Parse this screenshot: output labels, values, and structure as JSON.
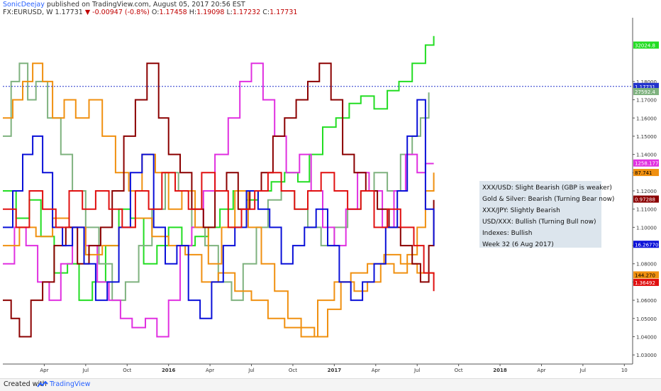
{
  "header": {
    "author": "SonicDeejay",
    "published": "published on TradingView.com, August 05, 2017 20:56 EST",
    "symbol": "FX:EURUSD, W",
    "last": "1.17731",
    "change_arrow": "▼",
    "change": "-0.00947 (-0.8%)",
    "ohlc": [
      {
        "label": "O:",
        "value": "1.17458"
      },
      {
        "label": "H:",
        "value": "1.19098"
      },
      {
        "label": "L:",
        "value": "1.17232"
      },
      {
        "label": "C:",
        "value": "1.17731"
      }
    ]
  },
  "legend": {
    "lines": [
      "XXX/USD: Slight Bearish (GBP is weaker)",
      "Gold & Silver: Bearish (Turning Bear now)",
      "XXX/JPY: Slightly Bearish",
      "USD/XXX: Bullish (Turning Bull now)",
      "Indexes: Bullish",
      "Week 32 (6 Aug 2017)"
    ]
  },
  "footer": {
    "created": "Created with",
    "brand": "TradingView",
    "icon": "tradingview-logo-icon"
  },
  "colors": {
    "green": "#22dd22",
    "olive": "#7fb27f",
    "magenta": "#e030e0",
    "orange": "#f09010",
    "darkred": "#8b0000",
    "blue": "#0a10d8",
    "red": "#e01010",
    "price_line": "#2233cc"
  },
  "chart_data": {
    "type": "line",
    "step": true,
    "grid": false,
    "ylim": [
      1.025,
      1.215
    ],
    "y_ticks": [
      "1.18000",
      "1.17000",
      "1.16000",
      "1.15000",
      "1.14000",
      "1.13000",
      "1.12000",
      "1.11000",
      "1.10000",
      "1.09000",
      "1.08000",
      "1.07000",
      "1.06000",
      "1.05000",
      "1.04000",
      "1.03000"
    ],
    "x_ticks": [
      "Apr",
      "Jul",
      "Oct",
      "2016",
      "Apr",
      "Jul",
      "Oct",
      "2017",
      "Apr",
      "Jul",
      "Oct",
      "2018",
      "Apr",
      "Jul",
      "10"
    ],
    "x_tick_values": [
      2015.25,
      2015.5,
      2015.75,
      2016.0,
      2016.25,
      2016.5,
      2016.75,
      2017.0,
      2017.25,
      2017.5,
      2017.75,
      2018.0,
      2018.25,
      2018.5,
      2018.75
    ],
    "price_line": {
      "value": 1.17731,
      "label": "1.17731"
    },
    "value_labels": [
      {
        "label": "32024.8",
        "y": 1.2,
        "color": "#22dd22",
        "text_color": "#ffffff"
      },
      {
        "label": "27592.4",
        "y": 1.1745,
        "color": "#7fb27f",
        "text_color": "#ffffff"
      },
      {
        "label": "1258.177",
        "y": 1.1353,
        "color": "#e030e0",
        "text_color": "#ffffff"
      },
      {
        "label": "87.741",
        "y": 1.1301,
        "color": "#f09010",
        "text_color": "#000000"
      },
      {
        "label": "0.97288",
        "y": 1.1155,
        "color": "#8b0000",
        "text_color": "#ffffff"
      },
      {
        "label": "16.26770",
        "y": 1.0907,
        "color": "#0a10d8",
        "text_color": "#ffffff"
      },
      {
        "label": "144.270",
        "y": 1.0739,
        "color": "#f09010",
        "text_color": "#000000"
      },
      {
        "label": "1.36492",
        "y": 1.0698,
        "color": "#e01010",
        "text_color": "#ffffff"
      }
    ],
    "series": [
      {
        "color": "#22dd22",
        "x": [
          2015.0,
          2015.08,
          2015.16,
          2015.23,
          2015.31,
          2015.39,
          2015.46,
          2015.54,
          2015.62,
          2015.7,
          2015.77,
          2015.85,
          2015.93,
          2016.0,
          2016.08,
          2016.16,
          2016.24,
          2016.31,
          2016.39,
          2016.47,
          2016.54,
          2016.62,
          2016.7,
          2016.78,
          2016.85,
          2016.93,
          2017.01,
          2017.09,
          2017.16,
          2017.24,
          2017.32,
          2017.39,
          2017.47,
          2017.55,
          2017.6
        ],
        "y": [
          1.12,
          1.105,
          1.115,
          1.095,
          1.075,
          1.08,
          1.06,
          1.07,
          1.09,
          1.11,
          1.105,
          1.08,
          1.09,
          1.1,
          1.09,
          1.095,
          1.1,
          1.11,
          1.12,
          1.115,
          1.12,
          1.125,
          1.13,
          1.125,
          1.14,
          1.155,
          1.16,
          1.168,
          1.172,
          1.165,
          1.175,
          1.18,
          1.19,
          1.2,
          1.205
        ]
      },
      {
        "color": "#7fb27f",
        "x": [
          2015.0,
          2015.05,
          2015.1,
          2015.15,
          2015.2,
          2015.27,
          2015.35,
          2015.42,
          2015.5,
          2015.58,
          2015.66,
          2015.74,
          2015.82,
          2015.9,
          2015.98,
          2016.06,
          2016.14,
          2016.22,
          2016.3,
          2016.38,
          2016.45,
          2016.53,
          2016.6,
          2016.68,
          2016.76,
          2016.84,
          2016.92,
          2017.0,
          2017.08,
          2017.16,
          2017.24,
          2017.32,
          2017.4,
          2017.47,
          2017.52,
          2017.57
        ],
        "y": [
          1.15,
          1.18,
          1.19,
          1.17,
          1.18,
          1.16,
          1.14,
          1.12,
          1.1,
          1.08,
          1.06,
          1.07,
          1.09,
          1.11,
          1.13,
          1.12,
          1.1,
          1.09,
          1.07,
          1.06,
          1.08,
          1.1,
          1.115,
          1.12,
          1.11,
          1.1,
          1.09,
          1.1,
          1.11,
          1.12,
          1.13,
          1.12,
          1.14,
          1.15,
          1.16,
          1.174
        ]
      },
      {
        "color": "#e030e0",
        "x": [
          2015.0,
          2015.07,
          2015.14,
          2015.21,
          2015.28,
          2015.35,
          2015.42,
          2015.5,
          2015.57,
          2015.64,
          2015.71,
          2015.78,
          2015.86,
          2015.93,
          2016.0,
          2016.07,
          2016.14,
          2016.21,
          2016.28,
          2016.36,
          2016.43,
          2016.5,
          2016.57,
          2016.64,
          2016.71,
          2016.79,
          2016.86,
          2016.93,
          2017.0,
          2017.07,
          2017.14,
          2017.21,
          2017.29,
          2017.36,
          2017.43,
          2017.5,
          2017.55,
          2017.6
        ],
        "y": [
          1.08,
          1.1,
          1.09,
          1.07,
          1.06,
          1.08,
          1.1,
          1.09,
          1.07,
          1.06,
          1.05,
          1.045,
          1.05,
          1.04,
          1.06,
          1.09,
          1.1,
          1.12,
          1.14,
          1.16,
          1.18,
          1.19,
          1.17,
          1.15,
          1.13,
          1.14,
          1.12,
          1.1,
          1.09,
          1.11,
          1.13,
          1.12,
          1.1,
          1.12,
          1.14,
          1.13,
          1.135,
          1.135
        ]
      },
      {
        "color": "#f09010",
        "x": [
          2015.0,
          2015.06,
          2015.12,
          2015.18,
          2015.24,
          2015.3,
          2015.37,
          2015.44,
          2015.52,
          2015.6,
          2015.68,
          2015.76,
          2015.84,
          2015.92,
          2016.0,
          2016.08,
          2016.16,
          2016.24,
          2016.32,
          2016.4,
          2016.48,
          2016.56,
          2016.64,
          2016.72,
          2016.8,
          2016.88,
          2016.96,
          2017.04,
          2017.12,
          2017.2,
          2017.28,
          2017.36,
          2017.44,
          2017.5,
          2017.55,
          2017.6
        ],
        "y": [
          1.16,
          1.17,
          1.18,
          1.19,
          1.18,
          1.16,
          1.17,
          1.16,
          1.17,
          1.15,
          1.13,
          1.12,
          1.14,
          1.13,
          1.11,
          1.12,
          1.1,
          1.08,
          1.1,
          1.12,
          1.1,
          1.08,
          1.065,
          1.05,
          1.045,
          1.04,
          1.055,
          1.07,
          1.065,
          1.07,
          1.08,
          1.075,
          1.085,
          1.1,
          1.12,
          1.13
        ]
      },
      {
        "color": "#f09010",
        "x": [
          2015.0,
          2015.1,
          2015.2,
          2015.3,
          2015.4,
          2015.5,
          2015.6,
          2015.7,
          2015.8,
          2015.9,
          2016.0,
          2016.1,
          2016.2,
          2016.3,
          2016.4,
          2016.5,
          2016.6,
          2016.7,
          2016.8,
          2016.9,
          2017.0,
          2017.1,
          2017.2,
          2017.3,
          2017.4,
          2017.5,
          2017.6
        ],
        "y": [
          1.09,
          1.1,
          1.095,
          1.105,
          1.1,
          1.085,
          1.09,
          1.1,
          1.105,
          1.095,
          1.09,
          1.085,
          1.07,
          1.075,
          1.065,
          1.06,
          1.05,
          1.045,
          1.04,
          1.06,
          1.07,
          1.075,
          1.08,
          1.085,
          1.08,
          1.075,
          1.074
        ]
      },
      {
        "color": "#8b0000",
        "x": [
          2015.0,
          2015.05,
          2015.1,
          2015.17,
          2015.24,
          2015.31,
          2015.38,
          2015.45,
          2015.52,
          2015.59,
          2015.66,
          2015.73,
          2015.8,
          2015.87,
          2015.94,
          2016.0,
          2016.07,
          2016.14,
          2016.21,
          2016.28,
          2016.35,
          2016.42,
          2016.49,
          2016.56,
          2016.63,
          2016.7,
          2016.77,
          2016.84,
          2016.91,
          2016.98,
          2017.05,
          2017.12,
          2017.19,
          2017.26,
          2017.33,
          2017.4,
          2017.47,
          2017.52,
          2017.57,
          2017.6
        ],
        "y": [
          1.06,
          1.05,
          1.04,
          1.06,
          1.07,
          1.09,
          1.1,
          1.08,
          1.09,
          1.1,
          1.12,
          1.15,
          1.17,
          1.19,
          1.16,
          1.14,
          1.13,
          1.11,
          1.1,
          1.12,
          1.13,
          1.11,
          1.12,
          1.13,
          1.15,
          1.16,
          1.17,
          1.18,
          1.19,
          1.17,
          1.14,
          1.13,
          1.12,
          1.11,
          1.1,
          1.09,
          1.08,
          1.07,
          1.09,
          1.115
        ]
      },
      {
        "color": "#0a10d8",
        "x": [
          2015.0,
          2015.06,
          2015.12,
          2015.18,
          2015.24,
          2015.3,
          2015.36,
          2015.42,
          2015.49,
          2015.56,
          2015.63,
          2015.7,
          2015.77,
          2015.84,
          2015.91,
          2015.98,
          2016.05,
          2016.12,
          2016.19,
          2016.26,
          2016.33,
          2016.4,
          2016.47,
          2016.54,
          2016.61,
          2016.68,
          2016.75,
          2016.82,
          2016.89,
          2016.96,
          2017.03,
          2017.1,
          2017.17,
          2017.24,
          2017.31,
          2017.38,
          2017.44,
          2017.5,
          2017.55,
          2017.6
        ],
        "y": [
          1.1,
          1.12,
          1.14,
          1.15,
          1.13,
          1.1,
          1.09,
          1.1,
          1.08,
          1.06,
          1.07,
          1.1,
          1.13,
          1.14,
          1.1,
          1.08,
          1.09,
          1.06,
          1.05,
          1.07,
          1.09,
          1.1,
          1.12,
          1.11,
          1.1,
          1.08,
          1.09,
          1.1,
          1.11,
          1.09,
          1.07,
          1.06,
          1.07,
          1.08,
          1.1,
          1.12,
          1.15,
          1.17,
          1.11,
          1.09
        ]
      },
      {
        "color": "#e01010",
        "x": [
          2015.0,
          2015.08,
          2015.16,
          2015.24,
          2015.32,
          2015.4,
          2015.48,
          2015.56,
          2015.64,
          2015.72,
          2015.8,
          2015.88,
          2015.96,
          2016.04,
          2016.12,
          2016.2,
          2016.28,
          2016.36,
          2016.44,
          2016.52,
          2016.6,
          2016.68,
          2016.76,
          2016.84,
          2016.92,
          2017.0,
          2017.08,
          2017.16,
          2017.24,
          2017.32,
          2017.4,
          2017.48,
          2017.54,
          2017.6
        ],
        "y": [
          1.11,
          1.1,
          1.12,
          1.11,
          1.1,
          1.12,
          1.11,
          1.12,
          1.11,
          1.1,
          1.12,
          1.11,
          1.13,
          1.12,
          1.11,
          1.13,
          1.12,
          1.1,
          1.11,
          1.12,
          1.13,
          1.12,
          1.11,
          1.12,
          1.13,
          1.12,
          1.11,
          1.12,
          1.1,
          1.11,
          1.1,
          1.09,
          1.075,
          1.065
        ]
      }
    ]
  }
}
